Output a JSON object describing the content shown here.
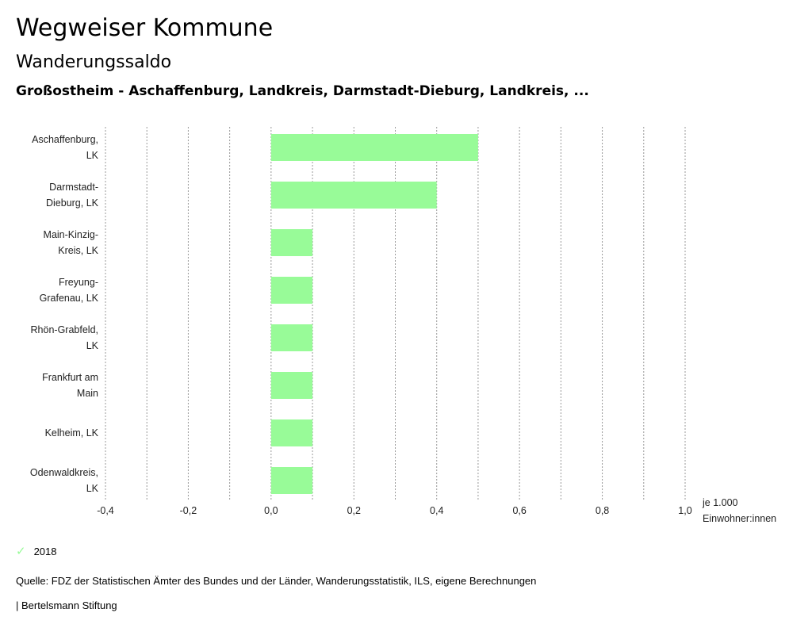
{
  "header": {
    "title": "Wegweiser Kommune",
    "subtitle": "Wanderungssaldo",
    "region": "Großostheim - Aschaffenburg, Landkreis, Darmstadt-Dieburg, Landkreis, ..."
  },
  "chart_data": {
    "type": "bar",
    "orientation": "horizontal",
    "categories": [
      [
        "Aschaffenburg,",
        "LK"
      ],
      [
        "Darmstadt-",
        "Dieburg, LK"
      ],
      [
        "Main-Kinzig-",
        "Kreis, LK"
      ],
      [
        "Freyung-",
        "Grafenau, LK"
      ],
      [
        "Rhön-Grabfeld,",
        "LK"
      ],
      [
        "Frankfurt am",
        "Main"
      ],
      [
        "Kelheim, LK"
      ],
      [
        "Odenwaldkreis,",
        "LK"
      ]
    ],
    "series": [
      {
        "name": "2018",
        "values": [
          0.5,
          0.4,
          0.1,
          0.1,
          0.1,
          0.1,
          0.1,
          0.1
        ],
        "color": "#98fb98"
      }
    ],
    "xlim": [
      -0.4,
      1.0
    ],
    "xticks": [
      "-0,4",
      "-0,2",
      "0,0",
      "0,2",
      "0,4",
      "0,6",
      "0,8",
      "1,0"
    ],
    "xlabel": [
      "je 1.000",
      "Einwohner:innen"
    ],
    "grid": true,
    "legend": "bottom-left"
  },
  "legend": {
    "label": "2018",
    "icon": "check-icon"
  },
  "footer": {
    "source": "Quelle: FDZ der Statistischen Ämter des Bundes und der Länder, Wanderungsstatistik, ILS, eigene Berechnungen",
    "brand": "| Bertelsmann Stiftung"
  }
}
